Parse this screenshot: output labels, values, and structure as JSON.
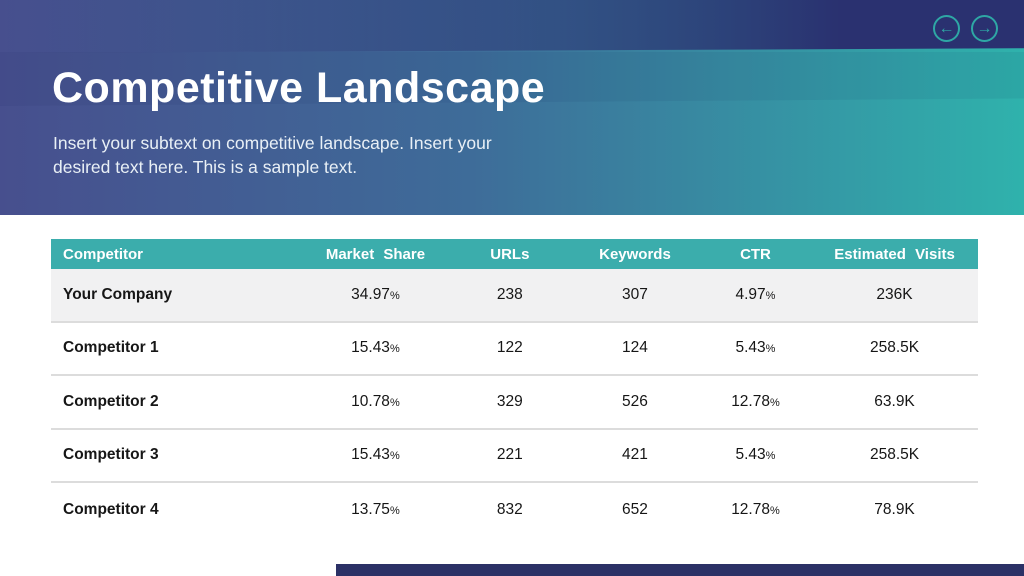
{
  "slide": {
    "title": "Competitive Landscape",
    "subtitle": "Insert your subtext on competitive landscape. Insert your desired text here. This is a sample text."
  },
  "navigation": {
    "prev_icon": "←",
    "next_icon": "→"
  },
  "colors": {
    "gradient_left": "#474F8E",
    "gradient_right": "#2FB2AC",
    "top_band_right": "#2A3170",
    "table_header_bg": "#3BADAC",
    "highlight_row_bg": "#F1F1F2",
    "footer_bar": "#2B3166",
    "arrow_accent": "#2EA7A5"
  },
  "table": {
    "percent_suffix": "%",
    "columns": [
      {
        "label": "Competitor"
      },
      {
        "label": "Market Share"
      },
      {
        "label": "URLs"
      },
      {
        "label": "Keywords"
      },
      {
        "label": "CTR"
      },
      {
        "label": "Estimated Visits"
      }
    ],
    "rows": [
      {
        "competitor": "Your Company",
        "market_share": "34.97",
        "urls": "238",
        "keywords": "307",
        "ctr": "4.97",
        "estimated_visits": "236K",
        "highlighted": true
      },
      {
        "competitor": "Competitor 1",
        "market_share": "15.43",
        "urls": "122",
        "keywords": "124",
        "ctr": "5.43",
        "estimated_visits": "258.5K",
        "highlighted": false
      },
      {
        "competitor": "Competitor 2",
        "market_share": "10.78",
        "urls": "329",
        "keywords": "526",
        "ctr": "12.78",
        "estimated_visits": "63.9K",
        "highlighted": false
      },
      {
        "competitor": "Competitor 3",
        "market_share": "15.43",
        "urls": "221",
        "keywords": "421",
        "ctr": "5.43",
        "estimated_visits": "258.5K",
        "highlighted": false
      },
      {
        "competitor": "Competitor 4",
        "market_share": "13.75",
        "urls": "832",
        "keywords": "652",
        "ctr": "12.78",
        "estimated_visits": "78.9K",
        "highlighted": false
      }
    ]
  }
}
